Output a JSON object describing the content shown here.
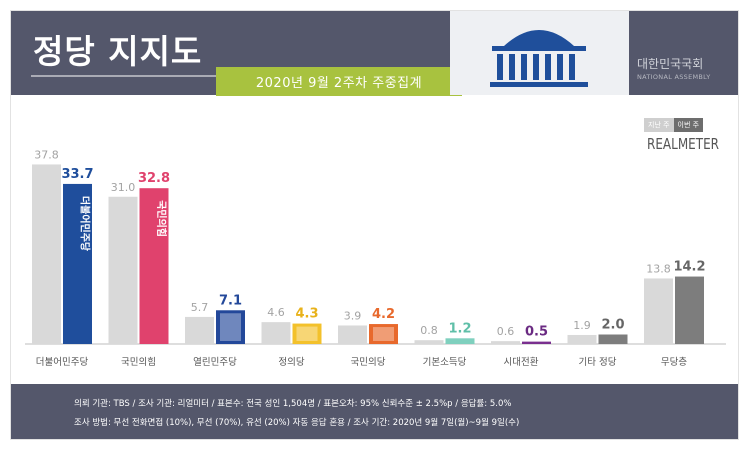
{
  "header": {
    "title": "정당 지지도",
    "date_banner": "2020년 9월 2주차 주중집계",
    "assembly_kr": "대한민국국회",
    "assembly_en": "NATIONAL ASSEMBLY"
  },
  "legend": {
    "prev": "지난 주",
    "curr": "이번 주"
  },
  "brand": "REALMETER",
  "logos": [
    "더불어민주당",
    "국민의힘",
    "열린민주당",
    "정의당",
    "국민의당"
  ],
  "colors": {
    "prev_bar": "#d9d9d9",
    "default_curr_bar": "#7d7d7d",
    "header_bg": "#54576b",
    "banner": "#a8c23f"
  },
  "chart_data": {
    "type": "bar",
    "categories": [
      "더불어민주당",
      "국민의힘",
      "열린민주당",
      "정의당",
      "국민의당",
      "기본소득당",
      "시대전환",
      "기타 정당",
      "무당층"
    ],
    "series": [
      {
        "name": "지난 주",
        "values": [
          37.8,
          31.0,
          5.7,
          4.6,
          3.9,
          0.8,
          0.6,
          1.9,
          13.8
        ]
      },
      {
        "name": "이번 주",
        "values": [
          33.7,
          32.8,
          7.1,
          4.3,
          4.2,
          1.2,
          0.5,
          2.0,
          14.2
        ]
      }
    ],
    "bar_colors": [
      "#1f4e9c",
      "#e0426d",
      "#23489a",
      "#f3c12b",
      "#e8692c",
      "#7fd0be",
      "#7a2f8f",
      "#7d7d7d",
      "#7d7d7d"
    ],
    "label_colors": [
      "#1f4e9c",
      "#e0426d",
      "#23489a",
      "#e8b21a",
      "#e8692c",
      "#5fbfa8",
      "#6a2a82",
      "#666666",
      "#666666"
    ],
    "ylim": [
      0,
      40
    ]
  },
  "footer": {
    "line1": "의뢰 기관: TBS / 조사 기관: 리얼미터 / 표본수: 전국 성인 1,504명 / 표본오차: 95% 신뢰수준 ± 2.5%p / 응답률: 5.0%",
    "line2": "조사 방법: 무선 전화면접 (10%), 무선 (70%), 유선 (20%) 자동 응답 혼용 / 조사 기간: 2020년 9월 7일(월)~9월 9일(수)"
  }
}
